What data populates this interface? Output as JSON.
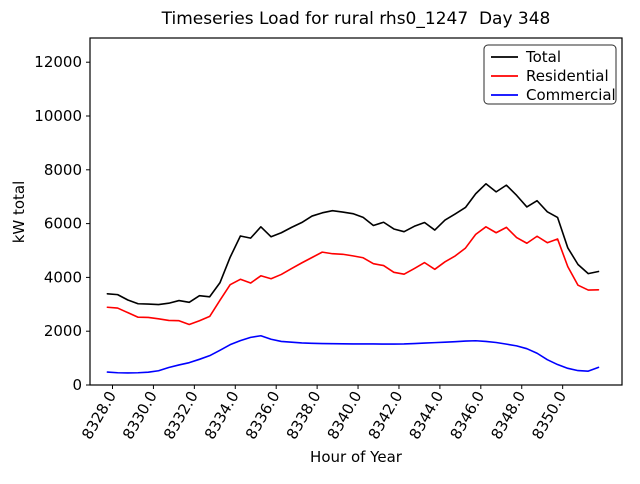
{
  "chart_data": {
    "type": "line",
    "title": "Timeseries Load for rural rhs0_1247  Day 348",
    "xlabel": "Hour of Year",
    "ylabel": "kW total",
    "xlim": [
      8326.9,
      8352.9
    ],
    "ylim": [
      0,
      12900
    ],
    "grid": false,
    "x_ticks": [
      8328,
      8330,
      8332,
      8334,
      8336,
      8338,
      8340,
      8342,
      8344,
      8346,
      8348,
      8350
    ],
    "x_tick_labels": [
      "8328.0",
      "8330.0",
      "8332.0",
      "8334.0",
      "8336.0",
      "8338.0",
      "8340.0",
      "8342.0",
      "8344.0",
      "8346.0",
      "8348.0",
      "8350.0"
    ],
    "y_ticks": [
      0,
      2000,
      4000,
      6000,
      8000,
      10000,
      12000
    ],
    "y_tick_labels": [
      "0",
      "2000",
      "4000",
      "6000",
      "8000",
      "10000",
      "12000"
    ],
    "legend": {
      "position": "upper right",
      "entries": [
        {
          "label": "Total",
          "color": "#000000"
        },
        {
          "label": "Residential",
          "color": "#ff0000"
        },
        {
          "label": "Commercial",
          "color": "#0000ff"
        }
      ]
    },
    "x": [
      8327.75,
      8328.25,
      8328.75,
      8329.25,
      8329.75,
      8330.25,
      8330.75,
      8331.25,
      8331.75,
      8332.25,
      8332.75,
      8333.25,
      8333.75,
      8334.25,
      8334.75,
      8335.25,
      8335.75,
      8336.25,
      8336.75,
      8337.25,
      8337.75,
      8338.25,
      8338.75,
      8339.25,
      8339.75,
      8340.25,
      8340.75,
      8341.25,
      8341.75,
      8342.25,
      8342.75,
      8343.25,
      8343.75,
      8344.25,
      8344.75,
      8345.25,
      8345.75,
      8346.25,
      8346.75,
      8347.25,
      8347.75,
      8348.25,
      8348.75,
      8349.25,
      8349.75,
      8350.25,
      8350.75,
      8351.25,
      8351.75
    ],
    "series": [
      {
        "name": "Total",
        "color": "#000000",
        "values": [
          3390,
          3360,
          3160,
          3020,
          3010,
          2990,
          3040,
          3140,
          3075,
          3320,
          3280,
          3800,
          4750,
          5540,
          5460,
          5880,
          5510,
          5660,
          5860,
          6040,
          6280,
          6400,
          6480,
          6430,
          6370,
          6230,
          5930,
          6050,
          5800,
          5700,
          5900,
          6040,
          5760,
          6130,
          6360,
          6600,
          7110,
          7480,
          7180,
          7430,
          7050,
          6620,
          6850,
          6440,
          6230,
          5100,
          4480,
          4140,
          4220
        ]
      },
      {
        "name": "Residential",
        "color": "#ff0000",
        "values": [
          2890,
          2860,
          2690,
          2520,
          2510,
          2460,
          2400,
          2390,
          2250,
          2390,
          2550,
          3150,
          3730,
          3930,
          3790,
          4060,
          3950,
          4110,
          4330,
          4540,
          4740,
          4940,
          4880,
          4860,
          4800,
          4730,
          4510,
          4440,
          4190,
          4120,
          4330,
          4550,
          4300,
          4580,
          4800,
          5090,
          5600,
          5880,
          5660,
          5860,
          5480,
          5270,
          5530,
          5290,
          5430,
          4400,
          3710,
          3530,
          3540
        ]
      },
      {
        "name": "Commercial",
        "color": "#0000ff",
        "values": [
          480,
          455,
          450,
          455,
          475,
          530,
          650,
          745,
          830,
          955,
          1090,
          1290,
          1500,
          1650,
          1770,
          1830,
          1700,
          1620,
          1590,
          1565,
          1550,
          1540,
          1535,
          1530,
          1528,
          1525,
          1525,
          1523,
          1522,
          1525,
          1540,
          1558,
          1575,
          1590,
          1610,
          1635,
          1645,
          1620,
          1580,
          1520,
          1455,
          1350,
          1180,
          940,
          760,
          620,
          535,
          515,
          655
        ]
      }
    ]
  },
  "colors": {
    "background": "#ffffff",
    "axes": "#000000",
    "total_line": "#000000",
    "residential_line": "#ff0000",
    "commercial_line": "#0000ff"
  }
}
